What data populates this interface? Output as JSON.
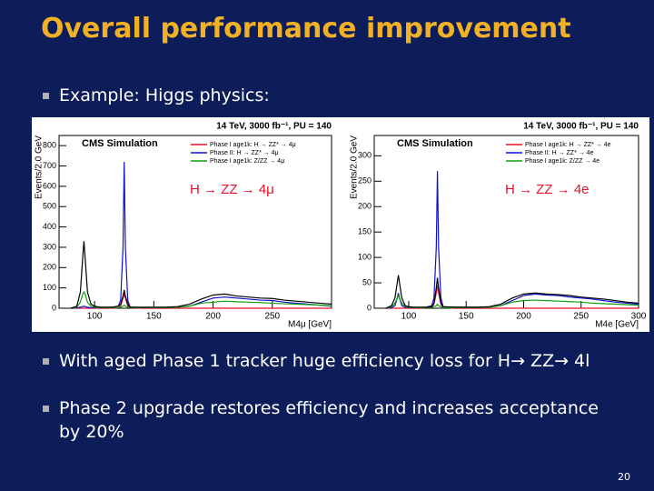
{
  "title": "Overall performance improvement",
  "bullets": [
    "Example:  Higgs physics:",
    "With aged Phase 1 tracker huge efficiency loss for H→ ZZ→ 4l",
    "Phase 2 upgrade restores efficiency and increases acceptance by 20%"
  ],
  "page_number": "20",
  "chart_data": [
    {
      "type": "line",
      "header": "14 TeV, 3000 fb⁻¹, PU = 140",
      "title": "CMS Simulation",
      "annotation": "H → ZZ → 4μ",
      "x_label": "M4μ [GeV]",
      "y_label": "Events/2.0 GeV",
      "xlim": [
        70,
        300
      ],
      "ylim": [
        0,
        850
      ],
      "xticks": [
        100,
        150,
        200,
        250
      ],
      "yticks": [
        0,
        100,
        200,
        300,
        400,
        500,
        600,
        700,
        800
      ],
      "x": [
        80,
        85,
        88,
        90,
        91,
        92,
        94,
        97,
        100,
        105,
        110,
        115,
        120,
        122,
        124,
        125,
        126,
        128,
        130,
        140,
        150,
        160,
        170,
        180,
        190,
        200,
        210,
        220,
        230,
        240,
        250,
        260,
        270,
        280,
        290,
        300
      ],
      "series": [
        {
          "name": "Phase I age1k: H → ZZ* → 4μ",
          "color": "#e8112d",
          "values": [
            0,
            0,
            0,
            0,
            0,
            0,
            0,
            0,
            0,
            0,
            0,
            1,
            2,
            10,
            50,
            70,
            50,
            10,
            2,
            0,
            0,
            0,
            0,
            0,
            0,
            0,
            0,
            0,
            0,
            0,
            0,
            0,
            0,
            0,
            0,
            0
          ]
        },
        {
          "name": "Phase II: H → ZZ* → 4μ",
          "color": "#1010d0",
          "values": [
            0,
            2,
            5,
            8,
            10,
            8,
            5,
            3,
            2,
            2,
            3,
            5,
            10,
            40,
            300,
            720,
            300,
            40,
            5,
            3,
            3,
            3,
            5,
            10,
            30,
            50,
            55,
            50,
            45,
            40,
            38,
            30,
            25,
            20,
            15,
            10
          ]
        },
        {
          "name": "Phase I age1k: Z/ZZ → 4μ",
          "color": "#10a010",
          "values": [
            0,
            5,
            30,
            70,
            80,
            70,
            30,
            10,
            5,
            3,
            3,
            3,
            3,
            5,
            10,
            15,
            10,
            5,
            3,
            3,
            3,
            3,
            5,
            10,
            25,
            30,
            35,
            32,
            30,
            28,
            25,
            22,
            20,
            18,
            15,
            12
          ]
        },
        {
          "color": "#000000",
          "values": [
            0,
            10,
            80,
            250,
            330,
            250,
            80,
            20,
            10,
            5,
            5,
            5,
            10,
            20,
            60,
            90,
            60,
            20,
            5,
            5,
            5,
            5,
            8,
            20,
            45,
            65,
            70,
            60,
            55,
            50,
            48,
            40,
            35,
            30,
            25,
            20
          ]
        }
      ]
    },
    {
      "type": "line",
      "header": "14 TeV, 3000 fb⁻¹, PU = 140",
      "title": "CMS Simulation",
      "annotation": "H → ZZ → 4e",
      "x_label": "M4e [GeV]",
      "y_label": "Events/2.0 GeV",
      "xlim": [
        70,
        300
      ],
      "ylim": [
        0,
        340
      ],
      "xticks": [
        100,
        150,
        200,
        250,
        300
      ],
      "yticks": [
        0,
        50,
        100,
        150,
        200,
        250,
        300
      ],
      "x": [
        80,
        85,
        88,
        90,
        91,
        92,
        94,
        97,
        100,
        105,
        110,
        115,
        120,
        122,
        124,
        125,
        126,
        128,
        130,
        140,
        150,
        160,
        170,
        180,
        190,
        200,
        210,
        220,
        230,
        240,
        250,
        260,
        270,
        280,
        290,
        300
      ],
      "series": [
        {
          "name": "Phase I age1k: H → ZZ* → 4e",
          "color": "#e8112d",
          "values": [
            0,
            0,
            0,
            0,
            0,
            0,
            0,
            0,
            0,
            0,
            0,
            1,
            2,
            8,
            30,
            45,
            30,
            8,
            2,
            0,
            0,
            0,
            0,
            0,
            0,
            0,
            0,
            0,
            0,
            0,
            0,
            0,
            0,
            0,
            0,
            0
          ]
        },
        {
          "name": "Phase II: H → ZZ* → 4e",
          "color": "#1010d0",
          "values": [
            0,
            1,
            5,
            20,
            30,
            20,
            5,
            2,
            1,
            1,
            1,
            2,
            5,
            20,
            120,
            270,
            120,
            20,
            3,
            2,
            2,
            2,
            3,
            5,
            15,
            25,
            28,
            26,
            25,
            22,
            20,
            18,
            15,
            12,
            10,
            8
          ]
        },
        {
          "name": "Phase I age1k: Z/ZZ → 4e",
          "color": "#10a010",
          "values": [
            0,
            3,
            10,
            20,
            25,
            20,
            10,
            3,
            2,
            1,
            1,
            1,
            2,
            3,
            5,
            8,
            5,
            3,
            1,
            1,
            1,
            1,
            2,
            5,
            12,
            15,
            16,
            15,
            14,
            13,
            12,
            10,
            9,
            8,
            7,
            6
          ]
        },
        {
          "color": "#000000",
          "values": [
            0,
            5,
            20,
            50,
            65,
            50,
            20,
            5,
            3,
            2,
            2,
            2,
            3,
            10,
            40,
            60,
            40,
            10,
            3,
            2,
            2,
            2,
            3,
            8,
            20,
            28,
            30,
            28,
            27,
            25,
            22,
            20,
            18,
            15,
            12,
            10
          ]
        }
      ]
    }
  ]
}
